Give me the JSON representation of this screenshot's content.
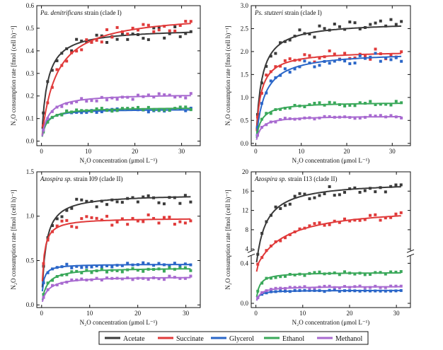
{
  "colors": {
    "Acetate": "#3a3a3a",
    "Succinate": "#e03a3a",
    "Glycerol": "#2a66c8",
    "Ethanol": "#3aa85a",
    "Methanol": "#a86ad0"
  },
  "legend": {
    "placement": "bottom-center",
    "items": [
      "Acetate",
      "Succinate",
      "Glycerol",
      "Ethanol",
      "Methanol"
    ]
  },
  "chart_data": [
    {
      "type": "scatter",
      "title_italic": "Pa. denitrificans",
      "title_rest": " strain (clade I)",
      "xlabel": "N₂O concentration (μmol L⁻¹)",
      "ylabel": "N₂O consumption rate [fmol (cell h)⁻¹]",
      "xlim": [
        -1,
        34
      ],
      "ylim": [
        -0.02,
        0.6
      ],
      "xticks": [
        0,
        10,
        20,
        30
      ],
      "yticks": [
        0.0,
        0.1,
        0.2,
        0.3,
        0.4,
        0.5,
        0.6
      ],
      "ytick_labels": [
        "0.0",
        "0.1",
        "0.2",
        "0.3",
        "0.4",
        "0.5",
        "0.6"
      ],
      "series": [
        {
          "name": "Acetate",
          "vmax": 0.5,
          "km": 1.2
        },
        {
          "name": "Succinate",
          "vmax": 0.57,
          "km": 3.0
        },
        {
          "name": "Glycerol",
          "vmax": 0.142,
          "km": 0.8
        },
        {
          "name": "Ethanol",
          "vmax": 0.15,
          "km": 1.0
        },
        {
          "name": "Methanol",
          "vmax": 0.21,
          "km": 1.3
        }
      ]
    },
    {
      "type": "scatter",
      "title_italic": "Ps. stutzeri",
      "title_rest": " strain (clade I)",
      "xlabel": "N₂O concentration (μmol L⁻¹)",
      "ylabel": "N₂O consumption rate [fmol (cell h)⁻¹]",
      "xlim": [
        -1,
        34
      ],
      "ylim": [
        -0.05,
        3.0
      ],
      "xticks": [
        0,
        10,
        20,
        30
      ],
      "yticks": [
        0.0,
        0.5,
        1.0,
        1.5,
        2.0,
        2.5,
        3.0
      ],
      "ytick_labels": [
        "0.0",
        "0.5",
        "1.0",
        "1.5",
        "2.0",
        "2.5",
        "3.0"
      ],
      "series": [
        {
          "name": "Acetate",
          "vmax": 2.65,
          "km": 1.2
        },
        {
          "name": "Succinate",
          "vmax": 2.02,
          "km": 1.0
        },
        {
          "name": "Glycerol",
          "vmax": 2.0,
          "km": 1.8
        },
        {
          "name": "Ethanol",
          "vmax": 0.9,
          "km": 1.0
        },
        {
          "name": "Methanol",
          "vmax": 0.6,
          "km": 1.0
        }
      ]
    },
    {
      "type": "scatter",
      "title_italic": "Azospira sp.",
      "title_rest": " strain I09 (clade II)",
      "xlabel": "N₂O concentration (μmol L⁻¹)",
      "ylabel": "N₂O consumption rate [fmol (cell h)⁻¹]",
      "xlim": [
        -1,
        33
      ],
      "ylim": [
        -0.03,
        1.5
      ],
      "xticks": [
        0,
        10,
        20,
        30
      ],
      "yticks": [
        0.0,
        0.5,
        1.0,
        1.5
      ],
      "ytick_labels": [
        "0.0",
        "0.5",
        "1.0",
        "1.5"
      ],
      "series": [
        {
          "name": "Acetate",
          "vmax": 1.25,
          "km": 0.8
        },
        {
          "name": "Succinate",
          "vmax": 0.98,
          "km": 0.4
        },
        {
          "name": "Glycerol",
          "vmax": 0.46,
          "km": 0.3
        },
        {
          "name": "Ethanol",
          "vmax": 0.42,
          "km": 1.0
        },
        {
          "name": "Methanol",
          "vmax": 0.32,
          "km": 1.2
        }
      ]
    },
    {
      "type": "scatter",
      "title_italic": "Azospira sp.",
      "title_rest": " strain I13 (clade II)",
      "xlabel": "N₂O concentration (μmol L⁻¹)",
      "ylabel": "N₂O consumption rate [fmol (cell h)⁻¹]",
      "xlim": [
        -1,
        33
      ],
      "broken_axis": {
        "lower": [
          0,
          0.5
        ],
        "upper": [
          4,
          20
        ]
      },
      "xticks": [
        0,
        10,
        20,
        30
      ],
      "yticks_lower": [
        0.0,
        0.4
      ],
      "ytick_labels_lower": [
        "0.0",
        "0.4"
      ],
      "yticks_upper": [
        4,
        8,
        12,
        16,
        20
      ],
      "ytick_labels_upper": [
        "4",
        "8",
        "12",
        "16",
        "20"
      ],
      "series": [
        {
          "name": "Acetate",
          "vmax": 18.0,
          "km": 2.0
        },
        {
          "name": "Succinate",
          "vmax": 13.0,
          "km": 6.0
        },
        {
          "name": "Glycerol",
          "vmax": 0.13,
          "km": 0.5
        },
        {
          "name": "Ethanol",
          "vmax": 0.31,
          "km": 0.6
        },
        {
          "name": "Methanol",
          "vmax": 0.17,
          "km": 0.8
        }
      ]
    }
  ]
}
